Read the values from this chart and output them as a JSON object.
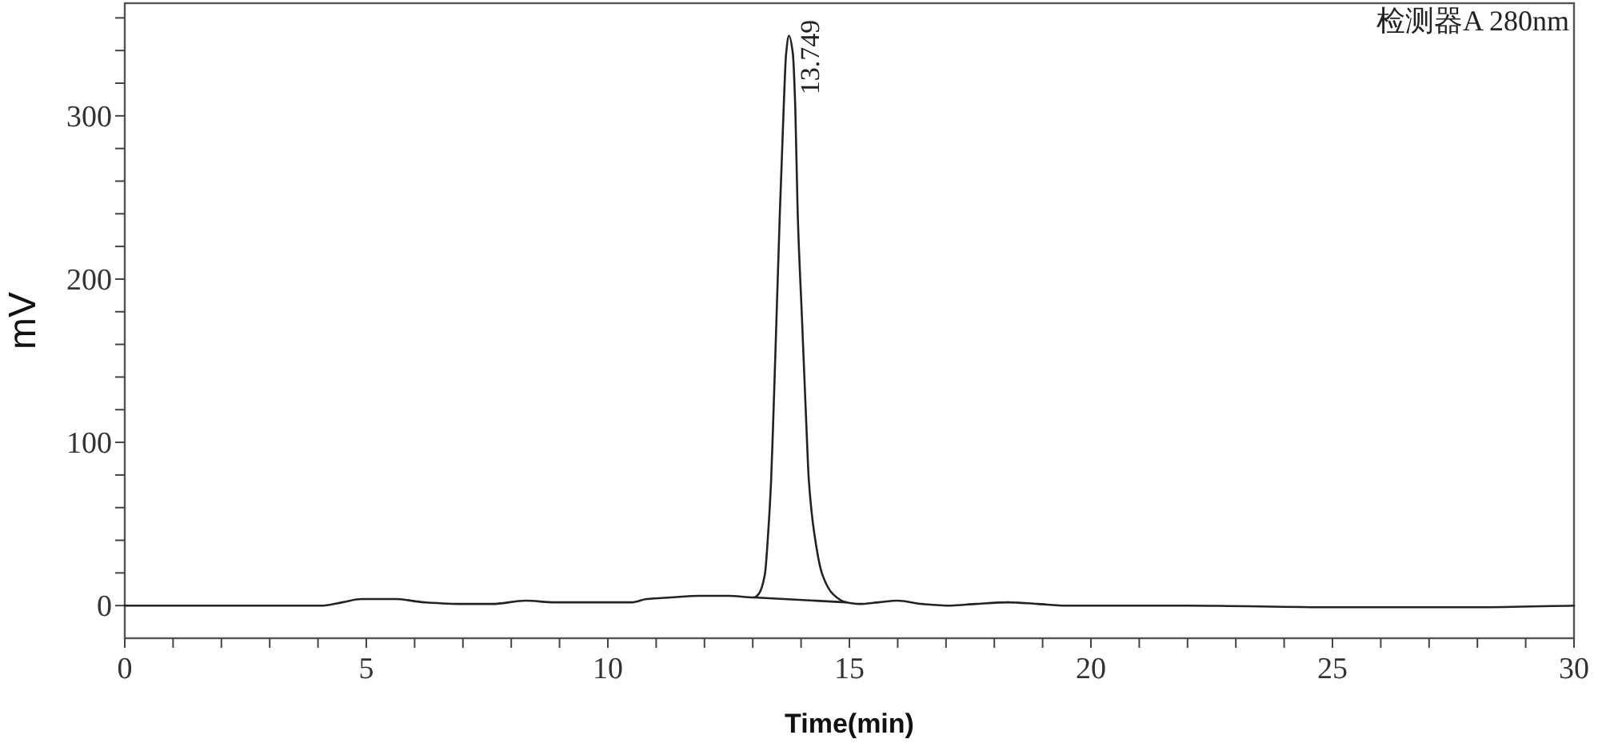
{
  "chart_data": {
    "type": "line",
    "xlabel": "Time(min)",
    "ylabel": "mV",
    "annotations": [
      {
        "text": "13.749",
        "x": 13.749,
        "y": 349
      },
      "检测器A 280nm"
    ],
    "xlim": [
      0,
      30
    ],
    "ylim": [
      -20,
      369
    ],
    "xticks": [
      0,
      {
        "value": 1,
        "label": null
      },
      {
        "value": 2,
        "label": null
      },
      {
        "value": 3,
        "label": null
      },
      {
        "value": 4,
        "label": null
      },
      5,
      {
        "value": 6,
        "label": null
      },
      {
        "value": 7,
        "label": null
      },
      {
        "value": 8,
        "label": null
      },
      {
        "value": 9,
        "label": null
      },
      10,
      {
        "value": 11,
        "label": null
      },
      {
        "value": 12,
        "label": null
      },
      {
        "value": 13,
        "label": null
      },
      {
        "value": 14,
        "label": null
      },
      15,
      {
        "value": 16,
        "label": null
      },
      {
        "value": 17,
        "label": null
      },
      {
        "value": 18,
        "label": null
      },
      {
        "value": 19,
        "label": null
      },
      20,
      {
        "value": 21,
        "label": null
      },
      {
        "value": 22,
        "label": null
      },
      {
        "value": 23,
        "label": null
      },
      {
        "value": 24,
        "label": null
      },
      25,
      {
        "value": 26,
        "label": null
      },
      {
        "value": 27,
        "label": null
      },
      {
        "value": 28,
        "label": null
      },
      {
        "value": 29,
        "label": null
      },
      30
    ],
    "yticks": [
      0,
      {
        "value": 20,
        "label": null
      },
      {
        "value": 40,
        "label": null
      },
      {
        "value": 60,
        "label": null
      },
      {
        "value": 80,
        "label": null
      },
      100,
      {
        "value": 120,
        "label": null
      },
      {
        "value": 140,
        "label": null
      },
      {
        "value": 160,
        "label": null
      },
      {
        "value": 180,
        "label": null
      },
      200,
      {
        "value": 220,
        "label": null
      },
      {
        "value": 240,
        "label": null
      },
      {
        "value": 260,
        "label": null
      },
      {
        "value": 280,
        "label": null
      },
      300,
      {
        "value": 320,
        "label": null
      },
      {
        "value": 340,
        "label": null
      },
      {
        "value": 360,
        "label": null
      }
    ],
    "series": [
      {
        "color": "#222222",
        "x": [
          0,
          1.0,
          1.8,
          3.0,
          4.1,
          4.5,
          4.9,
          5.2,
          5.6,
          6.2,
          7.0,
          7.6,
          8.3,
          8.9,
          9.6,
          10.5,
          10.8,
          11.3,
          11.9,
          12.5,
          13.03,
          13.12,
          13.25,
          13.32,
          13.38,
          13.42,
          13.49,
          13.56,
          13.64,
          13.69,
          13.749,
          13.83,
          13.88,
          13.93,
          14.02,
          14.11,
          14.16,
          14.27,
          14.44,
          14.66,
          14.93,
          15.2,
          15.6,
          16.0,
          16.5,
          17.1,
          17.6,
          18.3,
          18.9,
          19.5,
          20.5,
          22,
          25,
          28,
          30
        ],
        "values": [
          0,
          0,
          0,
          0,
          0,
          2,
          4,
          4,
          4,
          2,
          1,
          1,
          3,
          2,
          2,
          2,
          4,
          5,
          6,
          6,
          5,
          7,
          19,
          45,
          77,
          110,
          175,
          240,
          305,
          338,
          349,
          338,
          305,
          240,
          175,
          110,
          77,
          45,
          19,
          7,
          2,
          1,
          2,
          3,
          1,
          0,
          1,
          2,
          1,
          0,
          0,
          0,
          -1,
          -1,
          0
        ]
      },
      {
        "color": "#222222",
        "x": [
          13.03,
          14.93
        ],
        "values": [
          5,
          2
        ]
      }
    ]
  }
}
